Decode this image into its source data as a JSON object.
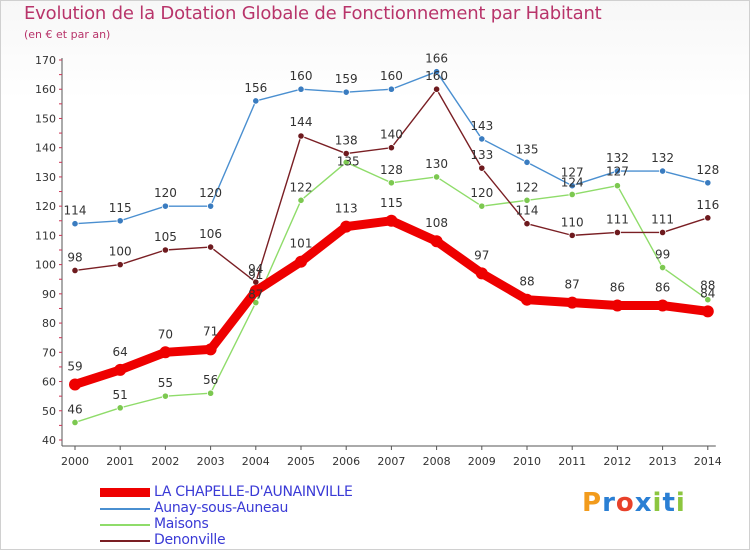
{
  "title": "Evolution de la Dotation Globale de Fonctionnement par Habitant",
  "subtitle": "(en € et par an)",
  "logo": {
    "text": "Proxiti",
    "letters": [
      "P",
      "r",
      "o",
      "x",
      "i",
      "t",
      "i"
    ],
    "colors": [
      "#f29b1c",
      "#2a7fd4",
      "#e8412a",
      "#2a7fd4",
      "#8cc63f",
      "#2a7fd4",
      "#8cc63f"
    ]
  },
  "chart_data": {
    "type": "line",
    "categories": [
      "2000",
      "2001",
      "2002",
      "2003",
      "2004",
      "2005",
      "2006",
      "2007",
      "2008",
      "2009",
      "2010",
      "2011",
      "2012",
      "2013",
      "2014"
    ],
    "ylim": [
      40,
      170
    ],
    "yticks": [
      40,
      50,
      60,
      70,
      80,
      90,
      100,
      110,
      120,
      130,
      140,
      150,
      160,
      170
    ],
    "grid": false,
    "legend_position": "bottom-left",
    "series": [
      {
        "name": "Aunay-sous-Auneau",
        "color": "#4a8fd0",
        "marker": "#3a7cc0",
        "values": [
          114,
          115,
          120,
          120,
          156,
          160,
          159,
          160,
          166,
          143,
          135,
          127,
          132,
          132,
          128
        ]
      },
      {
        "name": "Maisons",
        "color": "#8fdc6a",
        "marker": "#7cc850",
        "values": [
          46,
          51,
          55,
          56,
          87,
          122,
          135,
          128,
          130,
          120,
          122,
          124,
          127,
          99,
          88
        ]
      },
      {
        "name": "Denonville",
        "color": "#7a1f24",
        "marker": "#6e1a1e",
        "values": [
          98,
          100,
          105,
          106,
          94,
          144,
          138,
          140,
          160,
          133,
          114,
          110,
          111,
          111,
          116
        ]
      },
      {
        "name": "LA CHAPELLE-D'AUNAINVILLE",
        "color": "#ee0000",
        "marker": "#dd0000",
        "values": [
          59,
          64,
          70,
          71,
          91,
          101,
          113,
          115,
          108,
          97,
          88,
          87,
          86,
          86,
          84
        ]
      }
    ],
    "legend_order": [
      "LA CHAPELLE-D'AUNAINVILLE",
      "Aunay-sous-Auneau",
      "Maisons",
      "Denonville"
    ]
  }
}
